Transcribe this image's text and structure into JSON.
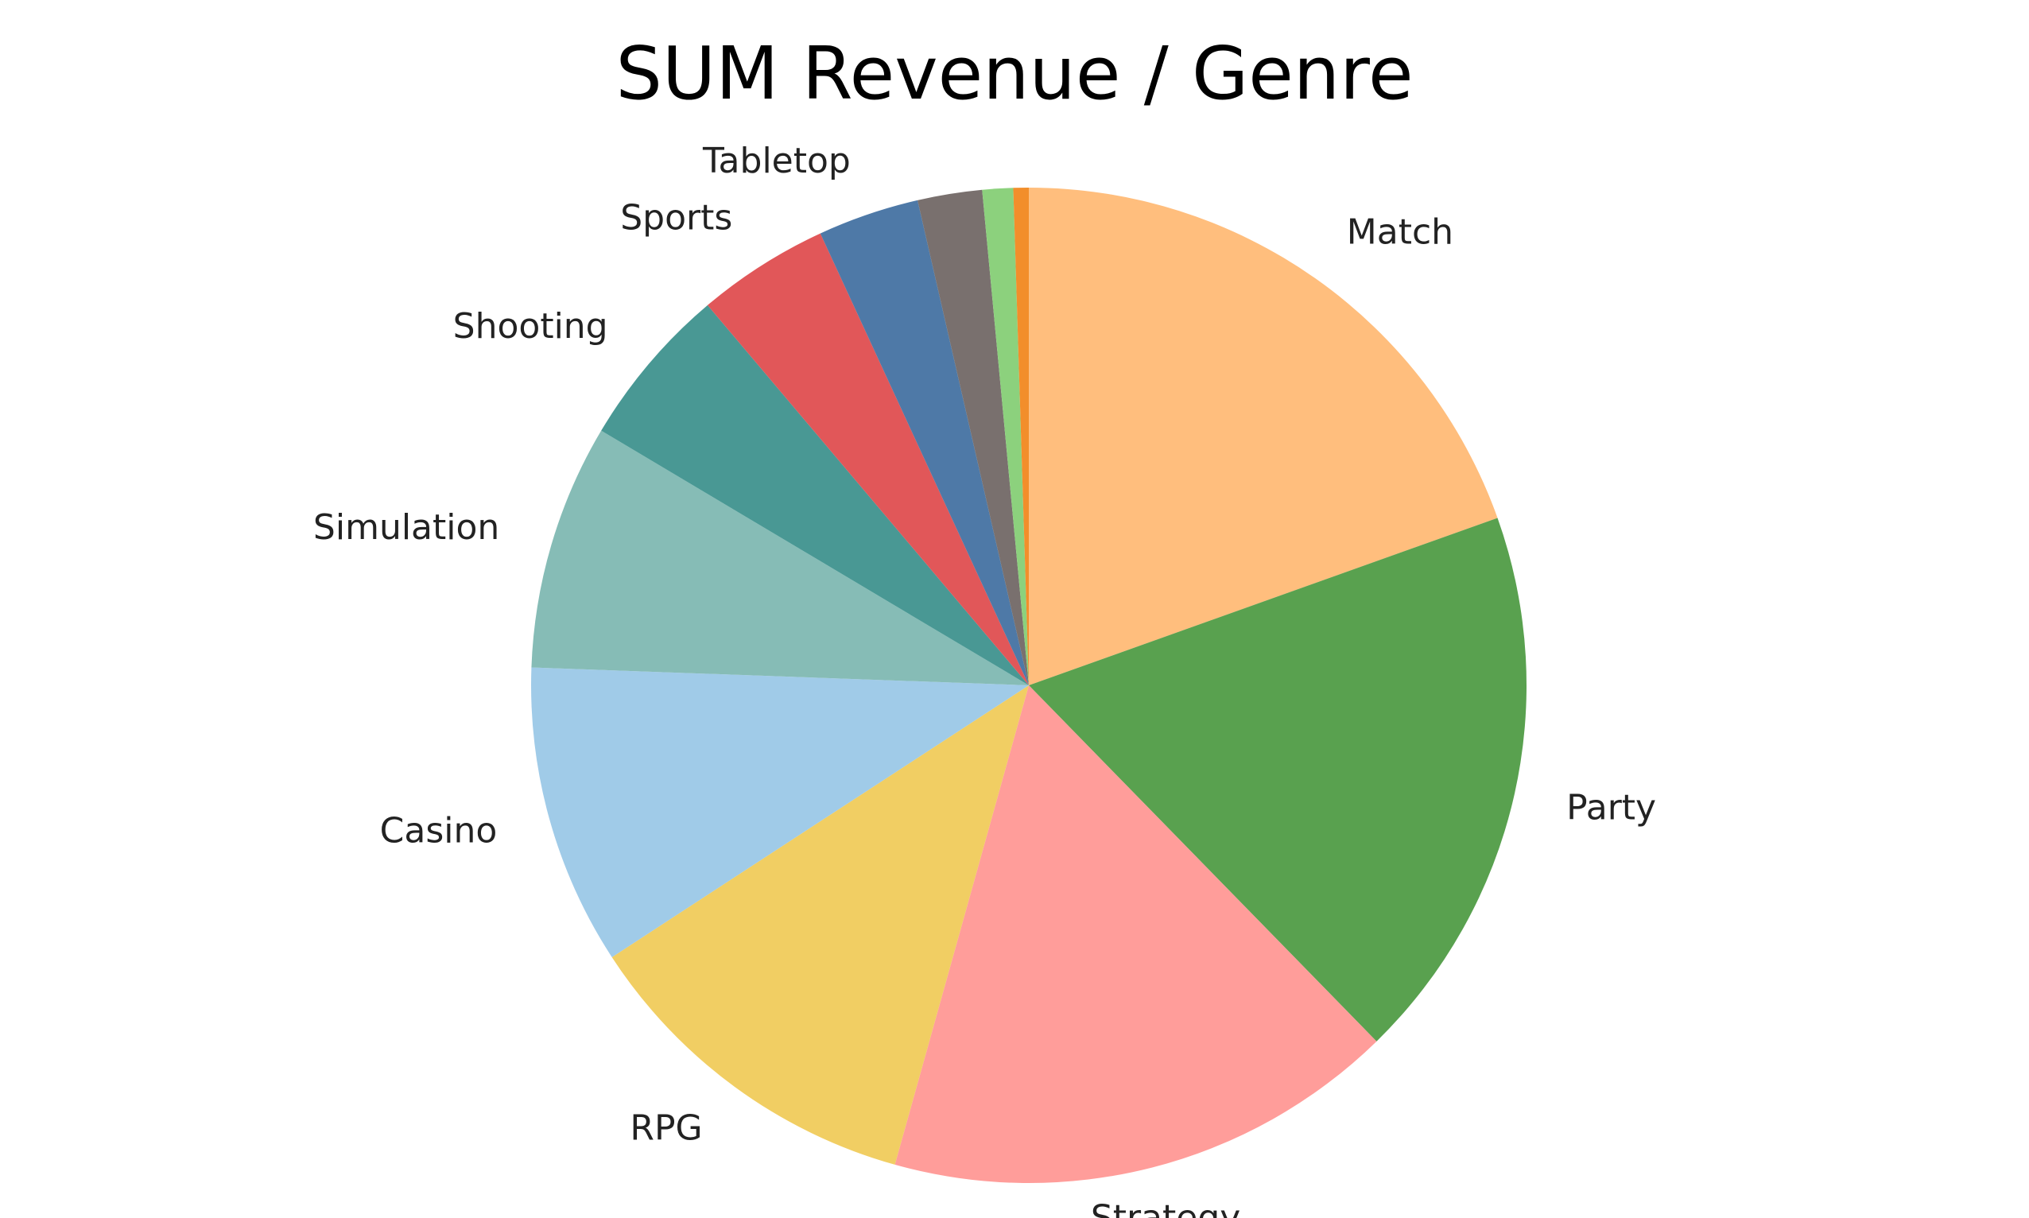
{
  "chart_data": {
    "type": "pie",
    "title": "SUM Revenue / Genre",
    "start_angle_deg": 0,
    "direction": "clockwise",
    "slices": [
      {
        "label": "Match",
        "value": 19.6,
        "color": "#FFBE7D"
      },
      {
        "label": "Party",
        "value": 18.2,
        "color": "#59A14F"
      },
      {
        "label": "Strategy",
        "value": 16.7,
        "color": "#FF9D9A"
      },
      {
        "label": "RPG",
        "value": 11.5,
        "color": "#F1CE63"
      },
      {
        "label": "Casino",
        "value": 9.8,
        "color": "#A0CBE8"
      },
      {
        "label": "Simulation",
        "value": 8.0,
        "color": "#86BCB6"
      },
      {
        "label": "Shooting",
        "value": 5.3,
        "color": "#499894"
      },
      {
        "label": "Sports",
        "value": 4.3,
        "color": "#E15759"
      },
      {
        "label": "Tabletop",
        "value": 3.3,
        "color": "#4E79A7"
      },
      {
        "label": "",
        "value": 2.1,
        "color": "#79706E"
      },
      {
        "label": "",
        "value": 1.0,
        "color": "#8CD17D"
      },
      {
        "label": "",
        "value": 0.5,
        "color": "#F28E2B"
      }
    ]
  }
}
